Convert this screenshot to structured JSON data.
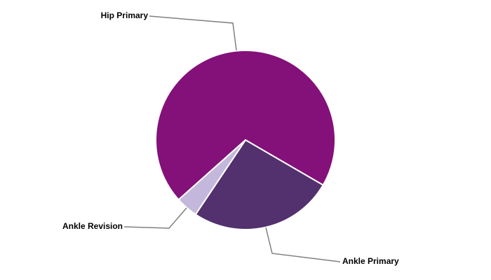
{
  "chart_data": {
    "type": "pie",
    "categories": [
      "Hip Primary",
      "Ankle Primary",
      "Ankle Revision"
    ],
    "values": [
      70,
      26,
      4
    ],
    "colors": [
      "#84107a",
      "#53306e",
      "#c3b8dc"
    ]
  }
}
